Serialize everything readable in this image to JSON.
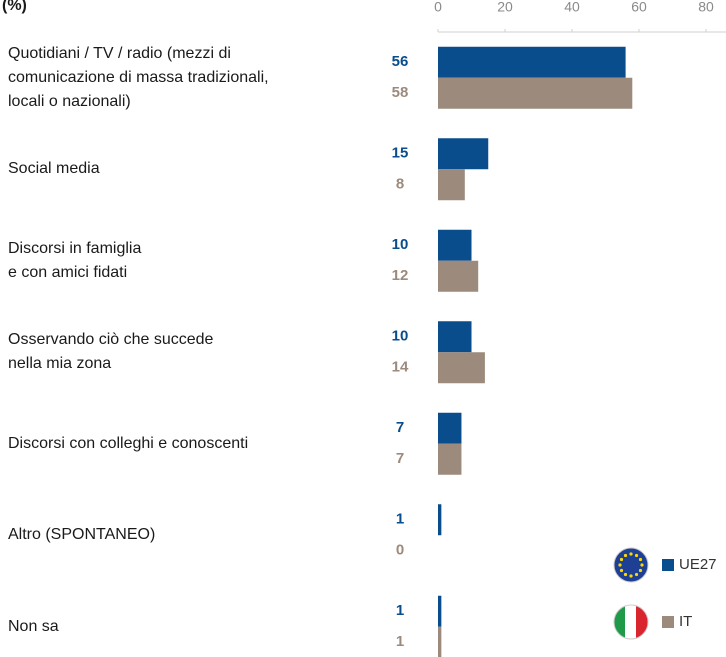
{
  "chart_data": {
    "type": "bar",
    "orientation": "horizontal",
    "unit_label": "(%)",
    "categories": [
      "Quotidiani / TV / radio (mezzi di\ncomunicazione di massa tradizionali,\nlocali o nazionali)",
      "Social media",
      "Discorsi in famiglia\ne con amici fidati",
      "Osservando ciò che succede\nnella mia zona",
      "Discorsi con colleghi e conoscenti",
      "Altro (SPONTANEO)",
      "Non sa"
    ],
    "series": [
      {
        "name": "UE27",
        "color": "#0a4d8c",
        "values": [
          56,
          15,
          10,
          10,
          7,
          1,
          1
        ]
      },
      {
        "name": "IT",
        "color": "#9c8a7c",
        "values": [
          58,
          8,
          12,
          14,
          7,
          0,
          1
        ]
      }
    ],
    "xlim": [
      0,
      80
    ],
    "xticks": [
      0,
      20,
      40,
      60,
      80
    ],
    "legend": "bottom-right",
    "grid": false
  }
}
